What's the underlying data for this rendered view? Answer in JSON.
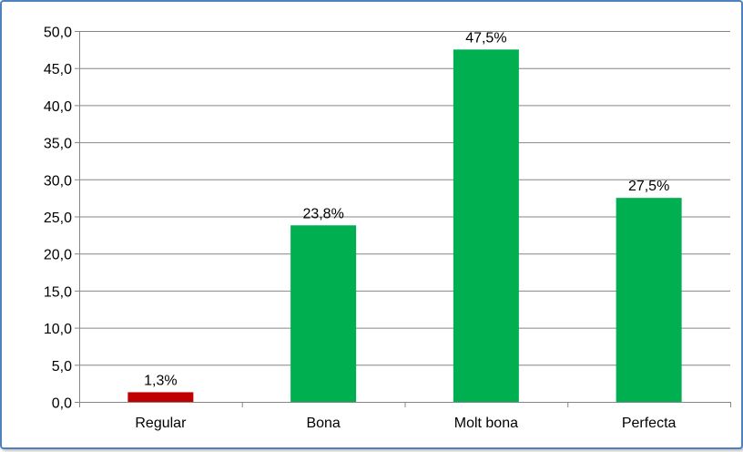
{
  "chart_data": {
    "type": "bar",
    "categories": [
      "Regular",
      "Bona",
      "Molt bona",
      "Perfecta"
    ],
    "values": [
      1.3,
      23.8,
      47.5,
      27.5
    ],
    "data_labels": [
      "1,3%",
      "23,8%",
      "47,5%",
      "27,5%"
    ],
    "bar_colors": [
      "#c00000",
      "#00b050",
      "#00b050",
      "#00b050"
    ],
    "ylim": [
      0,
      50
    ],
    "yticks": [
      0,
      5,
      10,
      15,
      20,
      25,
      30,
      35,
      40,
      45,
      50
    ],
    "ytick_labels": [
      "0,0",
      "5,0",
      "10,0",
      "15,0",
      "20,0",
      "25,0",
      "30,0",
      "35,0",
      "40,0",
      "45,0",
      "50,0"
    ],
    "grid": true,
    "legend": "none",
    "title": "",
    "xlabel": "",
    "ylabel": ""
  }
}
